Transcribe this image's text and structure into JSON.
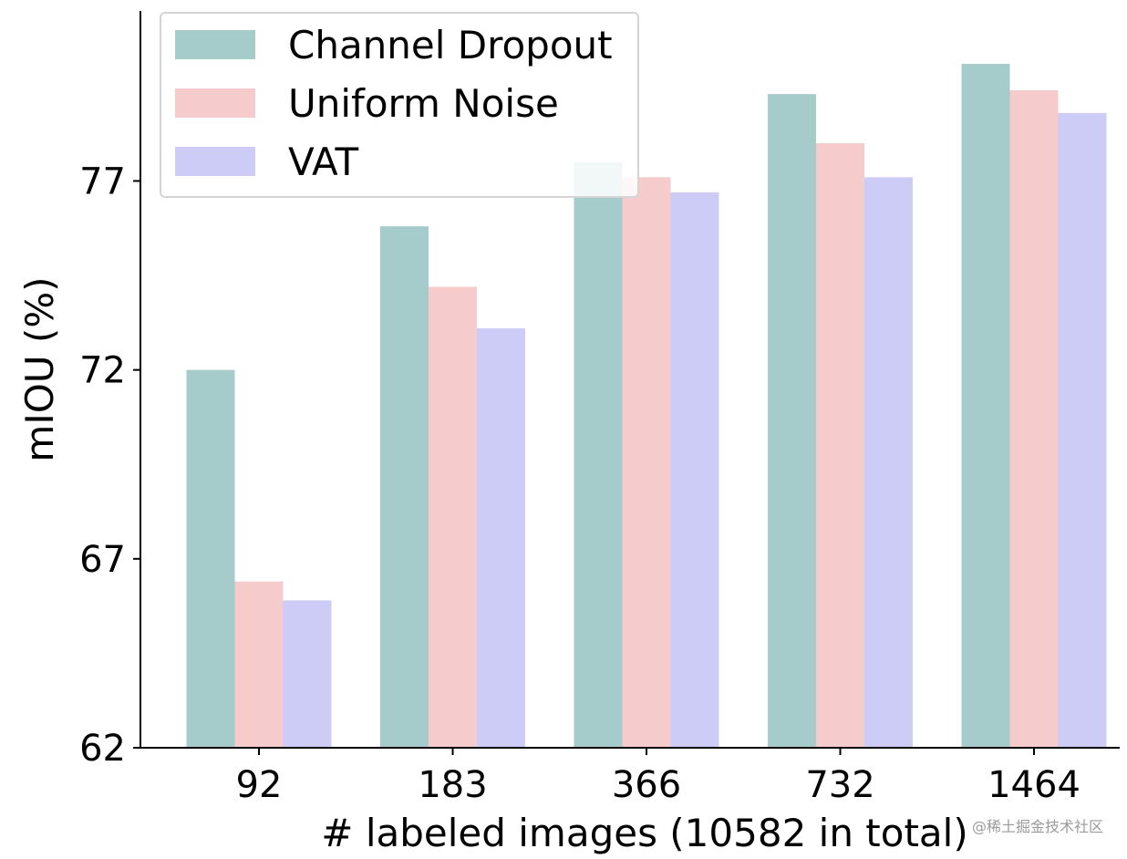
{
  "chart_data": {
    "type": "bar",
    "xlabel": "# labeled images (10582 in total)",
    "ylabel": "mIOU (%)",
    "categories": [
      "92",
      "183",
      "366",
      "732",
      "1464"
    ],
    "series": [
      {
        "name": "Channel Dropout",
        "color": "#a5cbca",
        "values": [
          72.0,
          75.8,
          77.5,
          79.3,
          80.1
        ]
      },
      {
        "name": "Uniform Noise",
        "color": "#f5cbcc",
        "values": [
          66.4,
          74.2,
          77.1,
          78.0,
          79.4
        ]
      },
      {
        "name": "VAT",
        "color": "#ccccf7",
        "values": [
          65.9,
          73.1,
          76.7,
          77.1,
          78.8
        ]
      }
    ],
    "ylim": [
      62,
      81.5
    ],
    "yticks": [
      62,
      67,
      72,
      77
    ],
    "grid": false,
    "legend_position": "top-left"
  },
  "watermark": "@稀土掘金技术社区"
}
